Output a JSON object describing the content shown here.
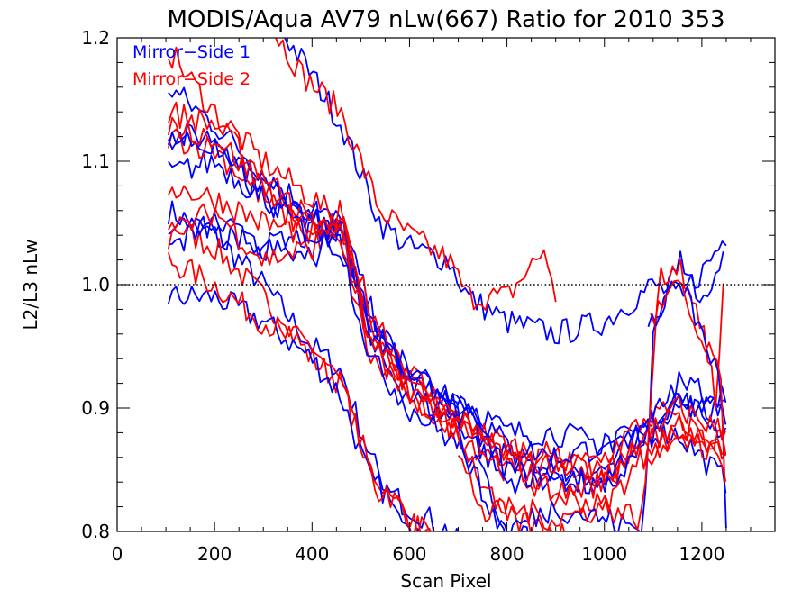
{
  "chart_data": {
    "type": "line",
    "title": "MODIS/Aqua AV79 nLw(667) Ratio for 2010 353",
    "xlabel": "Scan Pixel",
    "ylabel": "L2/L3 nLw",
    "xlim": [
      0,
      1350
    ],
    "ylim": [
      0.8,
      1.2
    ],
    "x_ticks": [
      "0",
      "200",
      "400",
      "600",
      "800",
      "1000",
      "1200"
    ],
    "y_ticks": [
      "0.8",
      "0.9",
      "1.0",
      "1.1",
      "1.2"
    ],
    "reference_line": 1.0,
    "legend_placement": "top-left",
    "legend": [
      {
        "label": "Mirror−Side 1",
        "color": "#0000ff"
      },
      {
        "label": "Mirror−Side 2",
        "color": "#ff0000"
      }
    ],
    "series": [
      {
        "mirror_side": 1,
        "color": "#0000ff",
        "anchors": [
          [
            105,
            1.06
          ],
          [
            200,
            1.04
          ],
          [
            300,
            1.0
          ],
          [
            400,
            0.95
          ],
          [
            460,
            0.93
          ],
          [
            520,
            0.86
          ],
          [
            600,
            0.8
          ],
          [
            700,
            0.76
          ]
        ]
      },
      {
        "mirror_side": 2,
        "color": "#ff0000",
        "anchors": [
          [
            105,
            1.05
          ],
          [
            200,
            1.03
          ],
          [
            300,
            0.99
          ],
          [
            400,
            0.94
          ],
          [
            460,
            0.92
          ],
          [
            520,
            0.85
          ],
          [
            600,
            0.81
          ],
          [
            700,
            0.77
          ]
        ]
      },
      {
        "mirror_side": 1,
        "color": "#0000ff",
        "anchors": [
          [
            105,
            0.99
          ],
          [
            200,
            0.99
          ],
          [
            300,
            0.97
          ],
          [
            400,
            0.94
          ],
          [
            460,
            0.91
          ],
          [
            520,
            0.84
          ],
          [
            600,
            0.82
          ],
          [
            680,
            0.8
          ],
          [
            720,
            0.78
          ]
        ]
      },
      {
        "mirror_side": 2,
        "color": "#ff0000",
        "anchors": [
          [
            105,
            1.02
          ],
          [
            200,
            1.0
          ],
          [
            300,
            0.97
          ],
          [
            400,
            0.95
          ],
          [
            460,
            0.92
          ],
          [
            520,
            0.84
          ],
          [
            600,
            0.81
          ],
          [
            700,
            0.78
          ]
        ]
      },
      {
        "mirror_side": 1,
        "color": "#0000ff",
        "anchors": [
          [
            330,
            1.21
          ],
          [
            400,
            1.17
          ],
          [
            460,
            1.13
          ],
          [
            540,
            1.05
          ],
          [
            600,
            1.03
          ],
          [
            680,
            1.02
          ],
          [
            720,
            0.99
          ],
          [
            800,
            0.97
          ],
          [
            900,
            0.96
          ],
          [
            1000,
            0.97
          ],
          [
            1100,
            1.0
          ],
          [
            1150,
            0.99
          ],
          [
            1200,
            1.01
          ],
          [
            1250,
            1.04
          ]
        ]
      },
      {
        "mirror_side": 2,
        "color": "#ff0000",
        "anchors": [
          [
            300,
            1.22
          ],
          [
            380,
            1.17
          ],
          [
            460,
            1.14
          ],
          [
            540,
            1.06
          ],
          [
            600,
            1.04
          ],
          [
            680,
            1.02
          ],
          [
            720,
            0.99
          ],
          [
            800,
            0.99
          ],
          [
            880,
            1.03
          ],
          [
            900,
            0.98
          ]
        ]
      },
      {
        "mirror_side": 1,
        "color": "#0000ff",
        "anchors": [
          [
            105,
            1.16
          ],
          [
            200,
            1.13
          ],
          [
            300,
            1.09
          ],
          [
            400,
            1.06
          ],
          [
            460,
            1.05
          ],
          [
            520,
            0.98
          ],
          [
            600,
            0.92
          ],
          [
            700,
            0.9
          ],
          [
            800,
            0.86
          ],
          [
            900,
            0.85
          ],
          [
            1000,
            0.85
          ],
          [
            1080,
            0.88
          ],
          [
            1150,
            0.88
          ],
          [
            1250,
            0.84
          ]
        ]
      },
      {
        "mirror_side": 2,
        "color": "#ff0000",
        "anchors": [
          [
            105,
            1.19
          ],
          [
            200,
            1.14
          ],
          [
            300,
            1.1
          ],
          [
            400,
            1.07
          ],
          [
            460,
            1.05
          ],
          [
            520,
            0.97
          ],
          [
            600,
            0.91
          ],
          [
            700,
            0.89
          ],
          [
            800,
            0.85
          ],
          [
            900,
            0.86
          ],
          [
            1000,
            0.85
          ],
          [
            1080,
            0.86
          ],
          [
            1150,
            0.88
          ],
          [
            1250,
            0.87
          ]
        ]
      },
      {
        "mirror_side": 1,
        "color": "#0000ff",
        "anchors": [
          [
            105,
            1.12
          ],
          [
            200,
            1.12
          ],
          [
            300,
            1.08
          ],
          [
            400,
            1.06
          ],
          [
            460,
            1.04
          ],
          [
            520,
            0.97
          ],
          [
            600,
            0.92
          ],
          [
            700,
            0.91
          ],
          [
            800,
            0.88
          ],
          [
            900,
            0.88
          ],
          [
            1000,
            0.87
          ],
          [
            1080,
            0.88
          ],
          [
            1150,
            0.91
          ],
          [
            1250,
            0.88
          ]
        ]
      },
      {
        "mirror_side": 2,
        "color": "#ff0000",
        "anchors": [
          [
            105,
            1.14
          ],
          [
            200,
            1.13
          ],
          [
            300,
            1.09
          ],
          [
            400,
            1.05
          ],
          [
            460,
            1.04
          ],
          [
            520,
            0.96
          ],
          [
            600,
            0.92
          ],
          [
            700,
            0.89
          ],
          [
            800,
            0.87
          ],
          [
            900,
            0.86
          ],
          [
            1000,
            0.84
          ],
          [
            1080,
            0.87
          ],
          [
            1150,
            0.89
          ],
          [
            1250,
            0.86
          ]
        ]
      },
      {
        "mirror_side": 1,
        "color": "#0000ff",
        "anchors": [
          [
            105,
            1.09
          ],
          [
            200,
            1.1
          ],
          [
            300,
            1.07
          ],
          [
            400,
            1.05
          ],
          [
            460,
            1.04
          ],
          [
            520,
            0.95
          ],
          [
            600,
            0.91
          ],
          [
            700,
            0.89
          ],
          [
            800,
            0.84
          ],
          [
            900,
            0.85
          ],
          [
            1000,
            0.83
          ],
          [
            1080,
            0.87
          ],
          [
            1150,
            0.9
          ],
          [
            1250,
            0.9
          ]
        ]
      },
      {
        "mirror_side": 2,
        "color": "#ff0000",
        "anchors": [
          [
            105,
            1.12
          ],
          [
            200,
            1.11
          ],
          [
            300,
            1.07
          ],
          [
            400,
            1.04
          ],
          [
            460,
            1.03
          ],
          [
            520,
            0.94
          ],
          [
            600,
            0.91
          ],
          [
            700,
            0.88
          ],
          [
            800,
            0.85
          ],
          [
            900,
            0.83
          ],
          [
            1000,
            0.82
          ],
          [
            1080,
            0.86
          ],
          [
            1150,
            0.88
          ],
          [
            1250,
            0.87
          ]
        ]
      },
      {
        "mirror_side": 1,
        "color": "#0000ff",
        "anchors": [
          [
            105,
            1.03
          ],
          [
            200,
            1.05
          ],
          [
            300,
            1.03
          ],
          [
            400,
            1.04
          ],
          [
            460,
            1.05
          ],
          [
            520,
            0.97
          ],
          [
            600,
            0.93
          ],
          [
            700,
            0.91
          ],
          [
            800,
            0.87
          ],
          [
            900,
            0.86
          ],
          [
            1000,
            0.87
          ],
          [
            1080,
            0.88
          ],
          [
            1150,
            0.91
          ],
          [
            1250,
            0.89
          ]
        ]
      },
      {
        "mirror_side": 2,
        "color": "#ff0000",
        "anchors": [
          [
            105,
            1.08
          ],
          [
            200,
            1.07
          ],
          [
            300,
            1.05
          ],
          [
            400,
            1.04
          ],
          [
            460,
            1.05
          ],
          [
            520,
            0.98
          ],
          [
            600,
            0.93
          ],
          [
            700,
            0.89
          ],
          [
            800,
            0.86
          ],
          [
            900,
            0.85
          ],
          [
            1000,
            0.86
          ],
          [
            1080,
            0.89
          ],
          [
            1150,
            0.9
          ],
          [
            1250,
            0.88
          ]
        ]
      },
      {
        "mirror_side": 1,
        "color": "#0000ff",
        "anchors": [
          [
            105,
            1.05
          ],
          [
            200,
            1.04
          ],
          [
            300,
            1.03
          ],
          [
            400,
            1.02
          ],
          [
            460,
            1.05
          ],
          [
            520,
            0.96
          ],
          [
            600,
            0.93
          ],
          [
            700,
            0.9
          ],
          [
            800,
            0.85
          ],
          [
            900,
            0.84
          ],
          [
            1000,
            0.84
          ],
          [
            1080,
            0.88
          ],
          [
            1150,
            0.92
          ],
          [
            1250,
            0.91
          ]
        ]
      },
      {
        "mirror_side": 2,
        "color": "#ff0000",
        "anchors": [
          [
            105,
            1.04
          ],
          [
            200,
            1.06
          ],
          [
            300,
            1.02
          ],
          [
            400,
            1.03
          ],
          [
            460,
            1.06
          ],
          [
            520,
            0.95
          ],
          [
            600,
            0.92
          ],
          [
            700,
            0.89
          ],
          [
            800,
            0.86
          ],
          [
            900,
            0.83
          ],
          [
            1000,
            0.84
          ],
          [
            1080,
            0.88
          ],
          [
            1150,
            0.89
          ],
          [
            1250,
            0.85
          ]
        ]
      },
      {
        "mirror_side": 1,
        "color": "#0000ff",
        "anchors": [
          [
            105,
            1.12
          ],
          [
            200,
            1.11
          ],
          [
            300,
            1.07
          ],
          [
            400,
            1.04
          ],
          [
            460,
            1.03
          ],
          [
            520,
            0.94
          ],
          [
            600,
            0.9
          ],
          [
            700,
            0.87
          ],
          [
            760,
            0.84
          ],
          [
            800,
            0.8
          ],
          [
            860,
            0.79
          ]
        ]
      },
      {
        "mirror_side": 2,
        "color": "#ff0000",
        "anchors": [
          [
            105,
            1.13
          ],
          [
            200,
            1.12
          ],
          [
            300,
            1.08
          ],
          [
            400,
            1.05
          ],
          [
            460,
            1.04
          ],
          [
            520,
            0.95
          ],
          [
            600,
            0.91
          ],
          [
            700,
            0.88
          ],
          [
            760,
            0.83
          ],
          [
            800,
            0.81
          ],
          [
            900,
            0.8
          ],
          [
            1000,
            0.79
          ]
        ]
      },
      {
        "mirror_side": 1,
        "color": "#0000ff",
        "anchors": [
          [
            700,
            0.88
          ],
          [
            760,
            0.82
          ],
          [
            800,
            0.8
          ],
          [
            900,
            0.82
          ],
          [
            1000,
            0.81
          ],
          [
            1080,
            0.8
          ],
          [
            1100,
            0.96
          ],
          [
            1150,
            1.02
          ],
          [
            1200,
            0.99
          ],
          [
            1250,
            1.03
          ]
        ]
      },
      {
        "mirror_side": 2,
        "color": "#ff0000",
        "anchors": [
          [
            700,
            0.86
          ],
          [
            760,
            0.81
          ],
          [
            800,
            0.82
          ],
          [
            900,
            0.81
          ],
          [
            1000,
            0.82
          ],
          [
            1080,
            0.81
          ],
          [
            1110,
            1.0
          ],
          [
            1150,
            1.02
          ],
          [
            1200,
            0.97
          ],
          [
            1230,
            0.9
          ],
          [
            1250,
            1.04
          ]
        ]
      },
      {
        "mirror_side": 1,
        "color": "#0000ff",
        "anchors": [
          [
            1090,
            0.96
          ],
          [
            1150,
            1.01
          ],
          [
            1200,
            0.96
          ],
          [
            1240,
            0.92
          ],
          [
            1250,
            0.81
          ]
        ]
      },
      {
        "mirror_side": 2,
        "color": "#ff0000",
        "anchors": [
          [
            1095,
            0.97
          ],
          [
            1150,
            1.0
          ],
          [
            1200,
            0.95
          ],
          [
            1240,
            0.93
          ],
          [
            1250,
            0.79
          ]
        ]
      }
    ]
  }
}
